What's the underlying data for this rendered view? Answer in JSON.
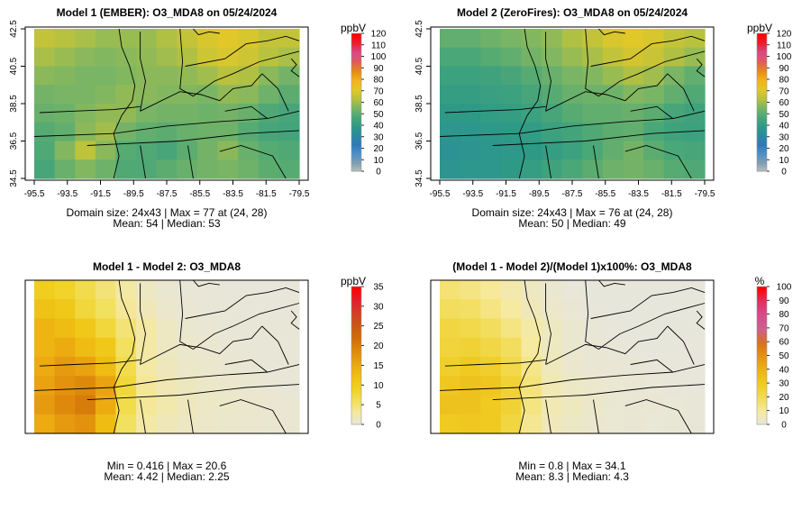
{
  "colors": {
    "conc_scale": [
      "#bfbfbf",
      "#7f9fb0",
      "#4f8fc8",
      "#2f78b8",
      "#2a8aa0",
      "#2e9a86",
      "#4aa777",
      "#7ab565",
      "#b8c23e",
      "#e2c728",
      "#f2b21c",
      "#e38a18",
      "#e05b5b",
      "#d84a8a",
      "#e8202f",
      "#ff0000"
    ],
    "diff_scale": [
      "#e6e6e0",
      "#f4e8a0",
      "#f2df57",
      "#f1d020",
      "#efbe13",
      "#e9a410",
      "#de880c",
      "#d06c0a",
      "#c95815",
      "#d43c2a",
      "#e31f2a",
      "#ff0000"
    ],
    "pct_scale": [
      "#e6e6e0",
      "#f6eaa0",
      "#f2dc55",
      "#f0cc22",
      "#ecb318",
      "#e39410",
      "#d87020",
      "#cc6090",
      "#d84a8a",
      "#e03060",
      "#ff0000"
    ],
    "axis": "#000000"
  },
  "chart_data": [
    {
      "type": "heatmap",
      "title": "Model 1 (EMBER): O3_MDA8 on 05/24/2024",
      "x_ticks": [
        "-95.5",
        "-93.5",
        "-91.5",
        "-89.5",
        "-87.5",
        "-85.5",
        "-83.5",
        "-81.5",
        "-79.5"
      ],
      "y_ticks": [
        "42.5",
        "40.5",
        "38.5",
        "36.5",
        "34.5"
      ],
      "xlim": [
        -95.5,
        -79.5
      ],
      "ylim": [
        34.5,
        42.5
      ],
      "unit": "ppbV",
      "legend_ticks": [
        "120",
        "110",
        "100",
        "90",
        "80",
        "70",
        "60",
        "50",
        "40",
        "30",
        "20",
        "10",
        "0"
      ],
      "legend_range": [
        0,
        120
      ],
      "stats_line1": "Domain size: 24x43 | Max = 77 at (24, 28)",
      "stats_line2": "Mean: 54 |  Median: 53",
      "scale": "conc",
      "grid": [
        [
          66,
          64,
          62,
          60,
          60,
          60,
          63,
          66,
          70,
          72,
          70,
          66,
          66
        ],
        [
          62,
          60,
          58,
          57,
          58,
          59,
          61,
          63,
          68,
          70,
          68,
          64,
          62
        ],
        [
          58,
          57,
          56,
          56,
          57,
          58,
          58,
          59,
          61,
          64,
          63,
          58,
          55
        ],
        [
          55,
          56,
          56,
          57,
          59,
          58,
          57,
          57,
          56,
          59,
          58,
          54,
          51
        ],
        [
          53,
          54,
          57,
          59,
          59,
          56,
          55,
          55,
          54,
          55,
          53,
          49,
          47
        ],
        [
          50,
          52,
          58,
          61,
          55,
          52,
          51,
          53,
          54,
          54,
          50,
          47,
          46
        ],
        [
          49,
          57,
          65,
          58,
          50,
          49,
          47,
          51,
          55,
          58,
          53,
          50,
          49
        ],
        [
          47,
          53,
          57,
          54,
          49,
          49,
          51,
          53,
          55,
          56,
          54,
          51,
          50
        ]
      ]
    },
    {
      "type": "heatmap",
      "title": "Model 2 (ZeroFires): O3_MDA8 on 05/24/2024",
      "x_ticks": [
        "-95.5",
        "-93.5",
        "-91.5",
        "-89.5",
        "-87.5",
        "-85.5",
        "-83.5",
        "-81.5",
        "-79.5"
      ],
      "y_ticks": [
        "42.5",
        "40.5",
        "38.5",
        "36.5",
        "34.5"
      ],
      "xlim": [
        -95.5,
        -79.5
      ],
      "ylim": [
        34.5,
        42.5
      ],
      "unit": "ppbV",
      "legend_ticks": [
        "120",
        "110",
        "100",
        "90",
        "80",
        "70",
        "60",
        "50",
        "40",
        "30",
        "20",
        "10",
        "0"
      ],
      "legend_range": [
        0,
        120
      ],
      "stats_line1": "Domain size: 24x43 | Max = 76 at (24, 28)",
      "stats_line2": "Mean: 50 |  Median: 49",
      "scale": "conc",
      "grid": [
        [
          52,
          52,
          54,
          56,
          57,
          59,
          63,
          66,
          70,
          72,
          70,
          66,
          64
        ],
        [
          48,
          48,
          50,
          52,
          55,
          57,
          60,
          62,
          66,
          69,
          67,
          63,
          60
        ],
        [
          44,
          44,
          45,
          47,
          50,
          53,
          56,
          57,
          60,
          63,
          61,
          56,
          52
        ],
        [
          42,
          42,
          43,
          44,
          47,
          50,
          53,
          54,
          54,
          57,
          56,
          52,
          49
        ],
        [
          40,
          40,
          41,
          42,
          44,
          47,
          50,
          52,
          52,
          53,
          51,
          47,
          45
        ],
        [
          38,
          38,
          39,
          40,
          41,
          44,
          46,
          49,
          51,
          52,
          48,
          45,
          44
        ],
        [
          36,
          37,
          38,
          39,
          40,
          42,
          44,
          48,
          52,
          55,
          51,
          48,
          47
        ],
        [
          37,
          38,
          38,
          40,
          42,
          45,
          48,
          51,
          54,
          55,
          53,
          50,
          49
        ]
      ]
    },
    {
      "type": "heatmap",
      "title": "Model 1 - Model 2: O3_MDA8",
      "unit": "ppbV",
      "legend_ticks": [
        "35",
        "30",
        "25",
        "20",
        "15",
        "10",
        "5",
        "0"
      ],
      "legend_range": [
        0,
        35
      ],
      "stats_line1": "Min = 0.416 | Max = 20.6",
      "stats_line2": "Mean: 4.42 |  Median: 2.25",
      "scale": "diff",
      "grid": [
        [
          10,
          9,
          7,
          5,
          3,
          1.5,
          0.8,
          0.5,
          0.5,
          0.4,
          0.4,
          0.4,
          0.4
        ],
        [
          12,
          11,
          8,
          6,
          3.5,
          2,
          1,
          0.6,
          0.5,
          0.5,
          0.4,
          0.4,
          0.4
        ],
        [
          14,
          13,
          11,
          8,
          5,
          3,
          1.5,
          0.8,
          0.6,
          0.5,
          0.5,
          0.5,
          0.5
        ],
        [
          14,
          15,
          13,
          11,
          6,
          3,
          1.5,
          1,
          0.8,
          0.6,
          0.5,
          0.5,
          0.5
        ],
        [
          15,
          17,
          16,
          13,
          7,
          3,
          1.8,
          1.2,
          1,
          0.8,
          0.6,
          0.5,
          0.5
        ],
        [
          16,
          18,
          19,
          16,
          8,
          3.5,
          2.2,
          1.6,
          1.2,
          1,
          0.8,
          0.6,
          0.5
        ],
        [
          17,
          19,
          20.6,
          15,
          7,
          3.5,
          2.5,
          1.8,
          1.4,
          1.2,
          1,
          0.8,
          0.7
        ],
        [
          15,
          17,
          18,
          13,
          6,
          3,
          2,
          1.5,
          1.2,
          1,
          0.9,
          0.8,
          0.7
        ]
      ]
    },
    {
      "type": "heatmap",
      "title": "(Model 1 - Model 2)/(Model 1)x100%: O3_MDA8",
      "unit": "%",
      "legend_ticks": [
        "100",
        "90",
        "80",
        "70",
        "60",
        "50",
        "40",
        "30",
        "20",
        "10",
        "0"
      ],
      "legend_range": [
        0,
        100
      ],
      "stats_line1": "Min = 0.8 | Max = 34.1",
      "stats_line2": "Mean: 8.3 |  Median: 4.3",
      "scale": "pct",
      "grid": [
        [
          16,
          14,
          11,
          8,
          5,
          2.5,
          1.3,
          0.9,
          0.9,
          0.8,
          0.8,
          0.8,
          0.8
        ],
        [
          19,
          18,
          14,
          10,
          6,
          3.5,
          1.8,
          1,
          0.9,
          0.9,
          0.8,
          0.8,
          0.8
        ],
        [
          24,
          22,
          19,
          14,
          9,
          5,
          2.6,
          1.4,
          1,
          0.9,
          0.9,
          0.9,
          0.9
        ],
        [
          25,
          26,
          23,
          19,
          10,
          5.2,
          2.6,
          1.8,
          1.4,
          1,
          0.9,
          0.9,
          1
        ],
        [
          28,
          31,
          28,
          22,
          13,
          5.5,
          3.2,
          2.1,
          1.8,
          1.5,
          1.1,
          1,
          1
        ],
        [
          32,
          34,
          33,
          26,
          15,
          6.7,
          4.3,
          3,
          2.2,
          1.8,
          1.6,
          1.2,
          1
        ],
        [
          34,
          34.1,
          31,
          26,
          14,
          7,
          5.3,
          3.5,
          2.5,
          2,
          1.8,
          1.6,
          1.4
        ],
        [
          31,
          32,
          31,
          24,
          12,
          6,
          4,
          3,
          2.2,
          1.8,
          1.6,
          1.5,
          1.4
        ]
      ]
    }
  ]
}
